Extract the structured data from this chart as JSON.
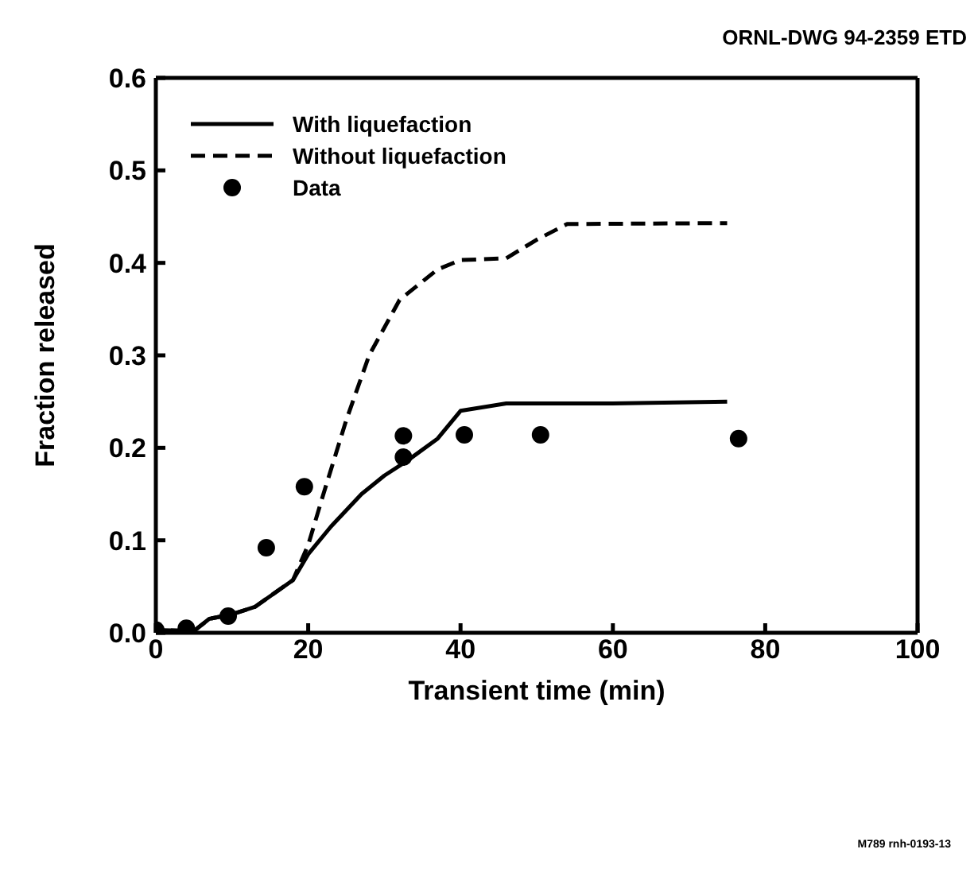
{
  "chart_data": {
    "type": "line",
    "xlabel": "Transient time (min)",
    "ylabel": "Fraction released",
    "xlim": [
      0,
      100
    ],
    "ylim": [
      0,
      0.6
    ],
    "xticks": [
      0,
      20,
      40,
      60,
      80,
      100
    ],
    "yticks": [
      {
        "value": 0,
        "label": "0.0"
      },
      {
        "value": 0.1,
        "label": "0.1"
      },
      {
        "value": 0.2,
        "label": "0.2"
      },
      {
        "value": 0.3,
        "label": "0.3"
      },
      {
        "value": 0.4,
        "label": "0.4"
      },
      {
        "value": 0.5,
        "label": "0.5"
      },
      {
        "value": 0.6,
        "label": "0.6"
      }
    ],
    "grid": false,
    "legend": "top left",
    "annotations": [
      "ORNL-DWG 94-2359 ETD",
      "M789 rnh-0193-13"
    ],
    "series": [
      {
        "name": "With liquefaction",
        "line_style": "solid",
        "color": "#000000",
        "x": [
          0,
          5,
          7,
          10,
          13,
          18,
          20,
          23,
          27,
          30,
          33,
          37,
          40,
          46,
          60,
          75
        ],
        "values": [
          0.003,
          0.002,
          0.015,
          0.02,
          0.028,
          0.057,
          0.085,
          0.115,
          0.15,
          0.17,
          0.186,
          0.21,
          0.24,
          0.248,
          0.248,
          0.25
        ]
      },
      {
        "name": "Without liquefaction",
        "type": "line",
        "line_style": "dashed",
        "color": "#000000",
        "x": [
          0,
          5,
          7,
          10,
          13,
          18,
          20,
          22,
          25,
          28,
          32,
          37,
          40,
          46,
          50,
          54,
          75
        ],
        "values": [
          0.003,
          0.002,
          0.015,
          0.02,
          0.028,
          0.057,
          0.095,
          0.15,
          0.23,
          0.3,
          0.36,
          0.393,
          0.403,
          0.405,
          0.425,
          0.442,
          0.443
        ]
      },
      {
        "name": "Data",
        "type": "scatter",
        "marker": "circle",
        "color": "#000000",
        "x": [
          0,
          4,
          9.5,
          14.5,
          19.5,
          32.5,
          32.5,
          40.5,
          50.5,
          76.5
        ],
        "values": [
          0.003,
          0.005,
          0.018,
          0.092,
          0.158,
          0.19,
          0.213,
          0.214,
          0.214,
          0.21
        ]
      }
    ]
  }
}
